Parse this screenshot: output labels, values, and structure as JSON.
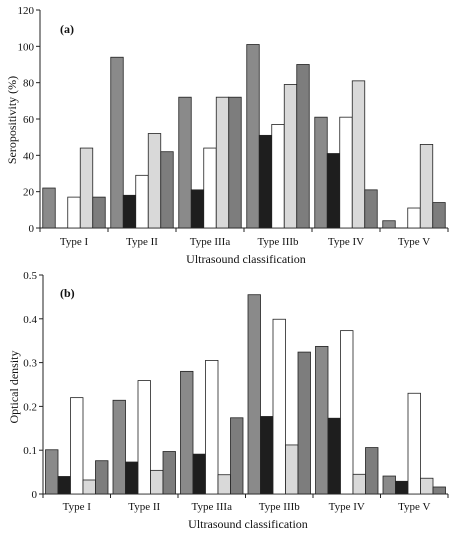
{
  "chart_data": [
    {
      "type": "bar",
      "panel_label": "(a)",
      "xlabel": "Ultrasound classification",
      "ylabel": "Seropositivity (%)",
      "ylim": [
        0,
        120
      ],
      "yticks": [
        0,
        20,
        40,
        60,
        80,
        100,
        120
      ],
      "categories": [
        "Type I",
        "Type II",
        "Type IIIa",
        "Type IIIb",
        "Type IV",
        "Type V"
      ],
      "series": [
        {
          "values": [
            22,
            94,
            72,
            101,
            61,
            4
          ],
          "color": "#8a8a8a"
        },
        {
          "values": [
            0,
            18,
            21,
            51,
            41,
            0
          ],
          "color": "#1e1e1e"
        },
        {
          "values": [
            17,
            29,
            44,
            57,
            61,
            11
          ],
          "color": "#ffffff"
        },
        {
          "values": [
            44,
            52,
            72,
            79,
            81,
            46
          ],
          "color": "#d9d9d9"
        },
        {
          "values": [
            17,
            42,
            72,
            90,
            21,
            14
          ],
          "color": "#7d7d7d"
        }
      ],
      "legend": false,
      "grid": false
    },
    {
      "type": "bar",
      "panel_label": "(b)",
      "xlabel": "Ultrasound classification",
      "ylabel": "Optical density",
      "ylim": [
        0,
        0.5
      ],
      "yticks": [
        0,
        0.1,
        0.2,
        0.3,
        0.4,
        0.5
      ],
      "categories": [
        "Type I",
        "Type II",
        "Type IIIa",
        "Type IIIb",
        "Type IV",
        "Type V"
      ],
      "series": [
        {
          "values": [
            0.101,
            0.214,
            0.28,
            0.455,
            0.337,
            0.041
          ],
          "color": "#8a8a8a"
        },
        {
          "values": [
            0.04,
            0.073,
            0.091,
            0.177,
            0.173,
            0.029
          ],
          "color": "#1e1e1e"
        },
        {
          "values": [
            0.22,
            0.259,
            0.305,
            0.399,
            0.373,
            0.23
          ],
          "color": "#ffffff"
        },
        {
          "values": [
            0.032,
            0.054,
            0.044,
            0.112,
            0.045,
            0.036
          ],
          "color": "#d9d9d9"
        },
        {
          "values": [
            0.076,
            0.097,
            0.174,
            0.324,
            0.106,
            0.016
          ],
          "color": "#7d7d7d"
        }
      ],
      "legend": false,
      "grid": false
    }
  ]
}
